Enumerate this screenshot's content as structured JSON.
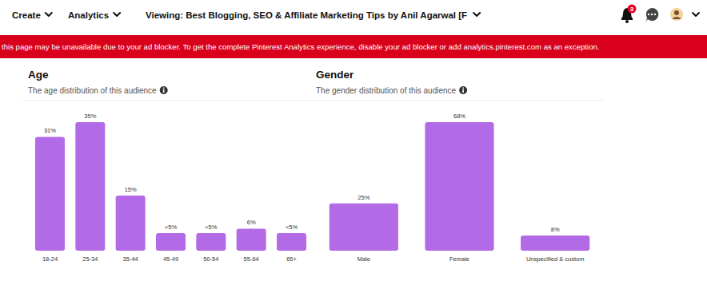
{
  "header": {
    "nav": [
      "Create",
      "Analytics"
    ],
    "viewing": "Viewing: Best Blogging, SEO & Affiliate Marketing Tips by Anil Agarwal [F",
    "notifications": 3
  },
  "banner": "this page may be unavailable due to your ad blocker. To get the complete Pinterest Analytics experience, disable your ad blocker or add analytics.pinterest.com as an exception.",
  "chart_data": [
    {
      "type": "bar",
      "title": "Age",
      "subtitle": "The age distribution of this audience",
      "categories": [
        "18-24",
        "25-34",
        "35-44",
        "45-49",
        "50-54",
        "55-64",
        "65+"
      ],
      "values": [
        31,
        35,
        15,
        4.8,
        4.8,
        6,
        4.8
      ],
      "value_labels": [
        "31%",
        "35%",
        "15%",
        "<5%",
        "<5%",
        "6%",
        "<5%"
      ],
      "color": "#b36ae6",
      "ylim": [
        0,
        35
      ],
      "data_labels": true,
      "tick_labels": "x",
      "grid": false
    },
    {
      "type": "bar",
      "title": "Gender",
      "subtitle": "The gender distribution of this audience",
      "categories": [
        "Male",
        "Female",
        "Unspecified & custom"
      ],
      "values": [
        25,
        68,
        8
      ],
      "value_labels": [
        "25%",
        "68%",
        "8%"
      ],
      "color": "#b36ae6",
      "ylim": [
        0,
        68
      ],
      "data_labels": true,
      "tick_labels": "x",
      "grid": false
    }
  ]
}
